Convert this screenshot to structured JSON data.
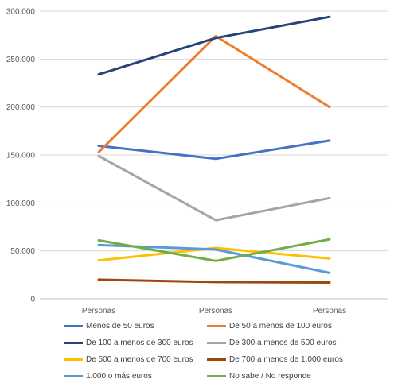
{
  "chart_data": {
    "type": "line",
    "categories": [
      "Personas",
      "Personas",
      "Personas"
    ],
    "ylim": [
      0,
      300000
    ],
    "yticks": [
      0,
      50000,
      100000,
      150000,
      200000,
      250000,
      300000
    ],
    "ytick_labels": [
      "0",
      "50.000",
      "100.000",
      "150.000",
      "200.000",
      "250.000",
      "300.000"
    ],
    "grid": "horizontal",
    "legend_position": "bottom",
    "series": [
      {
        "name": "Menos de 50 euros",
        "color": "#4472C4",
        "values": [
          159500,
          146000,
          165000
        ]
      },
      {
        "name": "De 50 a menos de 100 euros",
        "color": "#ED7D31",
        "values": [
          153000,
          274000,
          200000
        ]
      },
      {
        "name": "De 100 a menos de 300 euros",
        "color": "#264478",
        "values": [
          234000,
          272000,
          294000
        ]
      },
      {
        "name": "De 300 a menos de 500 euros",
        "color": "#A5A5A5",
        "values": [
          149000,
          82000,
          105000
        ]
      },
      {
        "name": "De 500 a menos de 700 euros",
        "color": "#FFC000",
        "values": [
          40000,
          53000,
          42000
        ]
      },
      {
        "name": "De 700 a menos de 1.000 euros",
        "color": "#9E480E",
        "values": [
          20000,
          17500,
          17000
        ]
      },
      {
        "name": "1.000 o más euros",
        "color": "#5B9BD5",
        "values": [
          56000,
          51500,
          27000
        ]
      },
      {
        "name": "No sabe / No responde",
        "color": "#70AD47",
        "values": [
          61000,
          39500,
          62000
        ]
      }
    ]
  }
}
